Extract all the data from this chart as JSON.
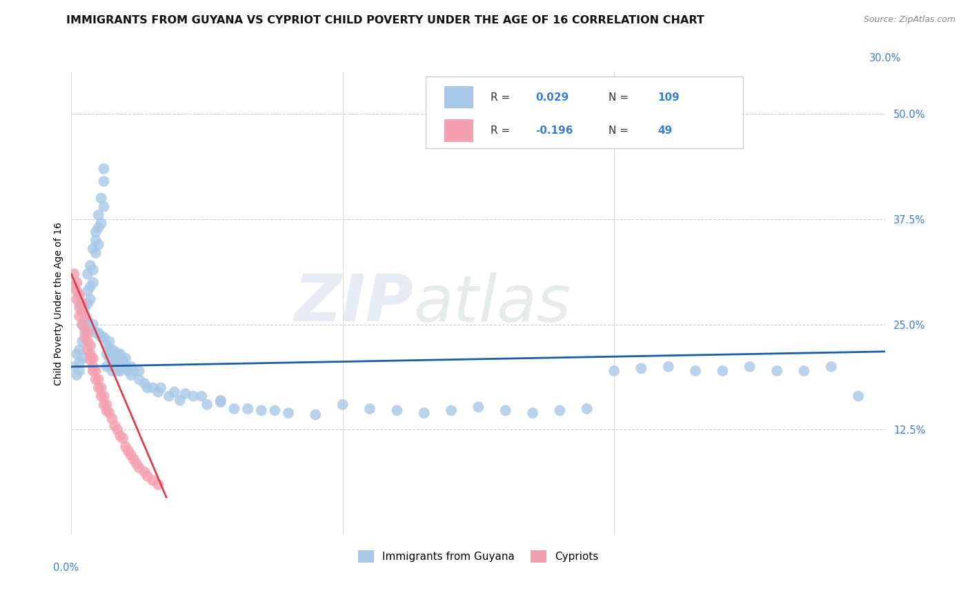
{
  "title": "IMMIGRANTS FROM GUYANA VS CYPRIOT CHILD POVERTY UNDER THE AGE OF 16 CORRELATION CHART",
  "source": "Source: ZipAtlas.com",
  "ylabel": "Child Poverty Under the Age of 16",
  "y_ticks": [
    "12.5%",
    "25.0%",
    "37.5%",
    "50.0%"
  ],
  "y_tick_vals": [
    0.125,
    0.25,
    0.375,
    0.5
  ],
  "xlim": [
    0.0,
    0.3
  ],
  "ylim": [
    0.0,
    0.55
  ],
  "legend_labels": [
    "Immigrants from Guyana",
    "Cypriots"
  ],
  "blue_color": "#a8c8e8",
  "pink_color": "#f4a0b0",
  "blue_line_color": "#1a5ca8",
  "pink_line_color": "#d9404a",
  "r_blue": 0.029,
  "n_blue": 109,
  "r_pink": -0.196,
  "n_pink": 49,
  "watermark_zip": "ZIP",
  "watermark_atlas": "atlas",
  "blue_scatter_x": [
    0.001,
    0.002,
    0.002,
    0.003,
    0.003,
    0.003,
    0.004,
    0.004,
    0.004,
    0.005,
    0.005,
    0.005,
    0.006,
    0.006,
    0.006,
    0.007,
    0.007,
    0.007,
    0.008,
    0.008,
    0.008,
    0.009,
    0.009,
    0.009,
    0.01,
    0.01,
    0.01,
    0.011,
    0.011,
    0.012,
    0.012,
    0.012,
    0.013,
    0.013,
    0.014,
    0.014,
    0.015,
    0.015,
    0.016,
    0.016,
    0.017,
    0.017,
    0.018,
    0.018,
    0.019,
    0.02,
    0.021,
    0.022,
    0.023,
    0.025,
    0.027,
    0.03,
    0.033,
    0.036,
    0.04,
    0.045,
    0.05,
    0.055,
    0.06,
    0.07,
    0.08,
    0.09,
    0.1,
    0.11,
    0.12,
    0.13,
    0.14,
    0.15,
    0.16,
    0.17,
    0.18,
    0.19,
    0.2,
    0.21,
    0.22,
    0.23,
    0.24,
    0.25,
    0.26,
    0.27,
    0.28,
    0.29,
    0.003,
    0.004,
    0.005,
    0.006,
    0.007,
    0.008,
    0.009,
    0.01,
    0.011,
    0.012,
    0.013,
    0.014,
    0.015,
    0.016,
    0.017,
    0.018,
    0.019,
    0.02,
    0.022,
    0.025,
    0.028,
    0.032,
    0.038,
    0.042,
    0.048,
    0.055,
    0.065,
    0.075
  ],
  "blue_scatter_y": [
    0.2,
    0.215,
    0.19,
    0.22,
    0.205,
    0.195,
    0.25,
    0.23,
    0.21,
    0.27,
    0.255,
    0.24,
    0.29,
    0.31,
    0.275,
    0.32,
    0.295,
    0.28,
    0.34,
    0.315,
    0.3,
    0.36,
    0.335,
    0.35,
    0.38,
    0.345,
    0.365,
    0.4,
    0.37,
    0.42,
    0.39,
    0.435,
    0.2,
    0.215,
    0.21,
    0.22,
    0.2,
    0.195,
    0.205,
    0.21,
    0.195,
    0.2,
    0.205,
    0.195,
    0.205,
    0.2,
    0.195,
    0.19,
    0.195,
    0.185,
    0.18,
    0.175,
    0.175,
    0.165,
    0.16,
    0.165,
    0.155,
    0.16,
    0.15,
    0.148,
    0.145,
    0.143,
    0.155,
    0.15,
    0.148,
    0.145,
    0.148,
    0.152,
    0.148,
    0.145,
    0.148,
    0.15,
    0.195,
    0.198,
    0.2,
    0.195,
    0.195,
    0.2,
    0.195,
    0.195,
    0.2,
    0.165,
    0.275,
    0.265,
    0.255,
    0.255,
    0.245,
    0.25,
    0.24,
    0.24,
    0.235,
    0.235,
    0.225,
    0.23,
    0.22,
    0.218,
    0.215,
    0.215,
    0.208,
    0.21,
    0.2,
    0.195,
    0.175,
    0.17,
    0.17,
    0.168,
    0.165,
    0.158,
    0.15,
    0.148
  ],
  "pink_scatter_x": [
    0.001,
    0.001,
    0.002,
    0.002,
    0.002,
    0.003,
    0.003,
    0.003,
    0.004,
    0.004,
    0.004,
    0.005,
    0.005,
    0.005,
    0.006,
    0.006,
    0.006,
    0.007,
    0.007,
    0.007,
    0.008,
    0.008,
    0.008,
    0.009,
    0.009,
    0.01,
    0.01,
    0.011,
    0.011,
    0.012,
    0.012,
    0.013,
    0.013,
    0.014,
    0.015,
    0.016,
    0.017,
    0.018,
    0.019,
    0.02,
    0.021,
    0.022,
    0.023,
    0.024,
    0.025,
    0.027,
    0.028,
    0.03,
    0.032
  ],
  "pink_scatter_y": [
    0.295,
    0.31,
    0.29,
    0.28,
    0.3,
    0.27,
    0.285,
    0.26,
    0.265,
    0.275,
    0.25,
    0.26,
    0.245,
    0.235,
    0.24,
    0.23,
    0.22,
    0.225,
    0.215,
    0.208,
    0.21,
    0.2,
    0.195,
    0.195,
    0.185,
    0.185,
    0.175,
    0.175,
    0.165,
    0.165,
    0.155,
    0.155,
    0.148,
    0.145,
    0.138,
    0.13,
    0.125,
    0.118,
    0.115,
    0.105,
    0.1,
    0.095,
    0.09,
    0.085,
    0.08,
    0.075,
    0.07,
    0.065,
    0.06
  ],
  "title_fontsize": 11.5,
  "axis_label_fontsize": 10,
  "tick_fontsize": 10.5
}
